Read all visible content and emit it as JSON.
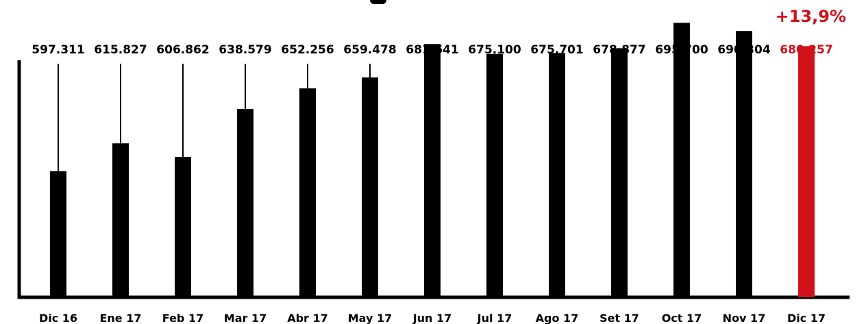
{
  "chart_data": {
    "type": "bar",
    "categories": [
      "Dic 16",
      "Ene 17",
      "Feb 17",
      "Mar 17",
      "Abr 17",
      "May 17",
      "Jun 17",
      "Jul 17",
      "Ago 17",
      "Set 17",
      "Oct 17",
      "Nov 17",
      "Dic 17"
    ],
    "values": [
      597311,
      615827,
      606862,
      638579,
      652256,
      659478,
      681641,
      675100,
      675701,
      678877,
      695700,
      690304,
      680257
    ],
    "value_labels": [
      "597.311",
      "615.827",
      "606.862",
      "638.579",
      "652.256",
      "659.478",
      "681.641",
      "675.100",
      "675.701",
      "678.877",
      "695.700",
      "690.304",
      "680.257"
    ],
    "highlight_index": 12,
    "annotation": "+13,9%",
    "title": "",
    "xlabel": "",
    "ylabel": "",
    "grid": false,
    "legend": "none"
  },
  "colors": {
    "bar": "#000000",
    "highlight": "#d0121b",
    "text": "#000000"
  }
}
